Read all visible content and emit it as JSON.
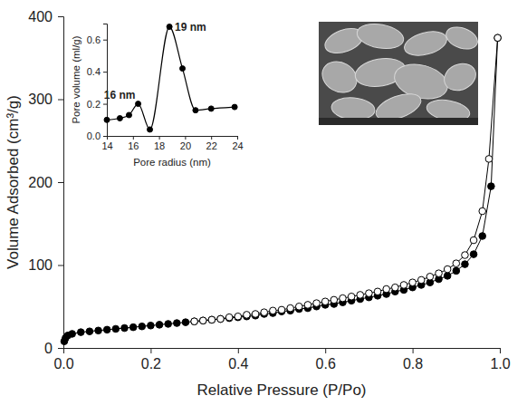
{
  "chart_data": [
    {
      "type": "line",
      "x_label": "Relative Pressure (P/Po)",
      "y_label": "Volume Adsorbed (cm³/g)",
      "xlim": [
        0,
        1
      ],
      "xticks": [
        {
          "value": 0,
          "label": "0.0"
        },
        {
          "value": 0.2,
          "label": "0.2"
        },
        {
          "value": 0.4,
          "label": "0.4"
        },
        {
          "value": 0.6,
          "label": "0.6"
        },
        {
          "value": 0.8,
          "label": "0.8"
        },
        {
          "value": 1,
          "label": "1.0"
        }
      ],
      "ylim": [
        0,
        400
      ],
      "yticks": [
        0,
        100,
        200,
        300,
        400
      ],
      "series": [
        {
          "color": "#000000",
          "marker": "filled-circle",
          "line_style": "solid",
          "x": [
            0.002,
            0.005,
            0.01,
            0.02,
            0.04,
            0.06,
            0.08,
            0.1,
            0.12,
            0.14,
            0.16,
            0.18,
            0.2,
            0.22,
            0.24,
            0.26,
            0.28,
            0.3,
            0.32,
            0.34,
            0.36,
            0.38,
            0.4,
            0.42,
            0.44,
            0.46,
            0.48,
            0.5,
            0.52,
            0.54,
            0.56,
            0.58,
            0.6,
            0.62,
            0.64,
            0.66,
            0.68,
            0.7,
            0.72,
            0.74,
            0.76,
            0.78,
            0.8,
            0.82,
            0.84,
            0.86,
            0.88,
            0.9,
            0.92,
            0.94,
            0.96,
            0.98,
            0.995
          ],
          "values": [
            8,
            12,
            15,
            17,
            19,
            20,
            21,
            22,
            23,
            24,
            25,
            26,
            27,
            28,
            29,
            30,
            31,
            32,
            33,
            34,
            35,
            36,
            37,
            38,
            39,
            41,
            42,
            44,
            45,
            47,
            48,
            50,
            52,
            53,
            55,
            57,
            59,
            61,
            63,
            65,
            68,
            70,
            73,
            76,
            79,
            83,
            87,
            93,
            101,
            113,
            135,
            195,
            374
          ]
        },
        {
          "color": "#000000",
          "marker": "open-circle",
          "line_style": "solid",
          "x": [
            0.3,
            0.32,
            0.34,
            0.36,
            0.38,
            0.4,
            0.42,
            0.44,
            0.46,
            0.48,
            0.5,
            0.52,
            0.54,
            0.56,
            0.58,
            0.6,
            0.62,
            0.64,
            0.66,
            0.68,
            0.7,
            0.72,
            0.74,
            0.76,
            0.78,
            0.8,
            0.82,
            0.84,
            0.86,
            0.88,
            0.9,
            0.92,
            0.94,
            0.96,
            0.975,
            0.995
          ],
          "values": [
            32,
            33,
            34,
            35,
            37,
            38,
            40,
            41,
            43,
            45,
            46,
            48,
            50,
            52,
            54,
            56,
            58,
            60,
            62,
            64,
            66,
            68,
            71,
            73,
            76,
            79,
            82,
            86,
            90,
            95,
            102,
            112,
            130,
            165,
            228,
            374
          ]
        }
      ]
    },
    {
      "type": "line",
      "x_label": "Pore radius (nm)",
      "y_label": "Pore volume (ml/g)",
      "xlim": [
        14,
        24
      ],
      "xticks": [
        14,
        16,
        18,
        20,
        22,
        24
      ],
      "ylim": [
        0,
        0.7
      ],
      "yticks": [
        {
          "value": 0,
          "label": "0.0"
        },
        {
          "value": 0.2,
          "label": "0.2"
        },
        {
          "value": 0.4,
          "label": "0.4"
        },
        {
          "value": 0.6,
          "label": "0.6"
        }
      ],
      "series": [
        {
          "color": "#000000",
          "marker": "filled-circle",
          "line_style": "solid",
          "x": [
            14,
            15,
            15.7,
            16.4,
            17.3,
            18.8,
            19.8,
            20.8,
            22,
            23.8
          ],
          "values": [
            0.1,
            0.11,
            0.13,
            0.2,
            0.04,
            0.68,
            0.42,
            0.16,
            0.17,
            0.18
          ]
        }
      ],
      "annotations": [
        {
          "text": "16 nm",
          "x": 16.4,
          "y": 0.2
        },
        {
          "text": "19 nm",
          "x": 18.8,
          "y": 0.68
        }
      ]
    }
  ]
}
